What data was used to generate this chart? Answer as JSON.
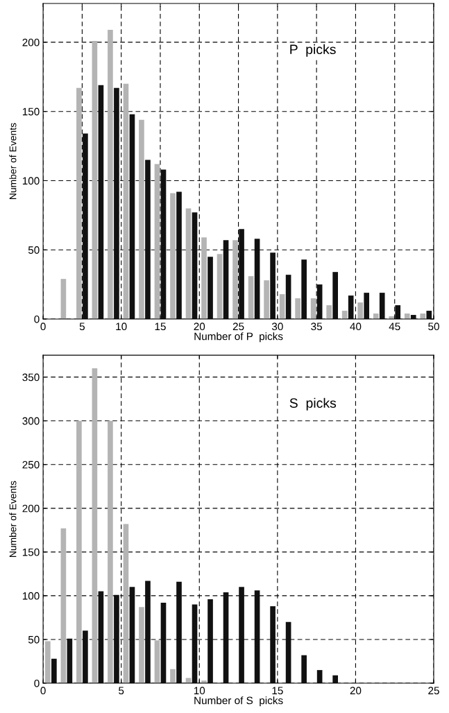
{
  "chart_data": [
    {
      "type": "bar",
      "xlabel": "Number of P  picks",
      "ylabel": "Number of Events",
      "annotations": [
        "P  picks"
      ],
      "x": [
        3,
        5,
        7,
        9,
        11,
        13,
        15,
        17,
        19,
        21,
        23,
        25,
        27,
        29,
        31,
        33,
        35,
        37,
        39,
        41,
        43,
        45,
        47,
        49
      ],
      "series": [
        {
          "color": "#b4b4b4",
          "values": [
            29,
            167,
            201,
            209,
            170,
            144,
            112,
            91,
            80,
            59,
            47,
            57,
            31,
            28,
            18,
            15,
            15,
            10,
            6,
            12,
            4,
            2,
            4,
            4
          ]
        },
        {
          "color": "#111111",
          "values": [
            0,
            134,
            169,
            167,
            148,
            115,
            108,
            92,
            77,
            45,
            57,
            65,
            58,
            48,
            32,
            43,
            25,
            34,
            17,
            19,
            19,
            10,
            3,
            6
          ]
        }
      ],
      "xlim": [
        0,
        50
      ],
      "xticks": [
        0,
        5,
        10,
        15,
        20,
        25,
        30,
        35,
        40,
        45,
        50
      ],
      "ylim": [
        0,
        228
      ],
      "yticks": [
        0,
        50,
        100,
        150,
        200
      ],
      "grid": true,
      "line_style": "dashed"
    },
    {
      "type": "bar",
      "xlabel": "Number of S  picks",
      "ylabel": "Number of Events",
      "annotations": [
        "S  picks"
      ],
      "x": [
        0.5,
        1.5,
        2.5,
        3.5,
        4.5,
        5.5,
        6.5,
        7.5,
        8.5,
        9.5,
        10.5,
        11.5,
        12.5,
        13.5,
        14.5,
        15.5,
        16.5,
        17.5,
        18.5,
        19.5,
        20.5
      ],
      "series": [
        {
          "color": "#b4b4b4",
          "values": [
            48,
            177,
            300,
            360,
            300,
            182,
            87,
            49,
            16,
            6,
            3,
            null,
            0,
            null,
            0,
            0,
            0,
            0,
            0,
            null,
            0
          ]
        },
        {
          "color": "#111111",
          "values": [
            28,
            51,
            60,
            105,
            101,
            110,
            117,
            92,
            116,
            90,
            96,
            104,
            110,
            106,
            88,
            70,
            32,
            15,
            9,
            0,
            null
          ]
        }
      ],
      "xlim": [
        0,
        25
      ],
      "xticks": [
        0,
        5,
        10,
        15,
        20,
        25
      ],
      "ylim": [
        0,
        375
      ],
      "yticks": [
        0,
        50,
        100,
        150,
        200,
        250,
        300,
        350
      ],
      "grid": true,
      "line_style": "dashed"
    }
  ]
}
